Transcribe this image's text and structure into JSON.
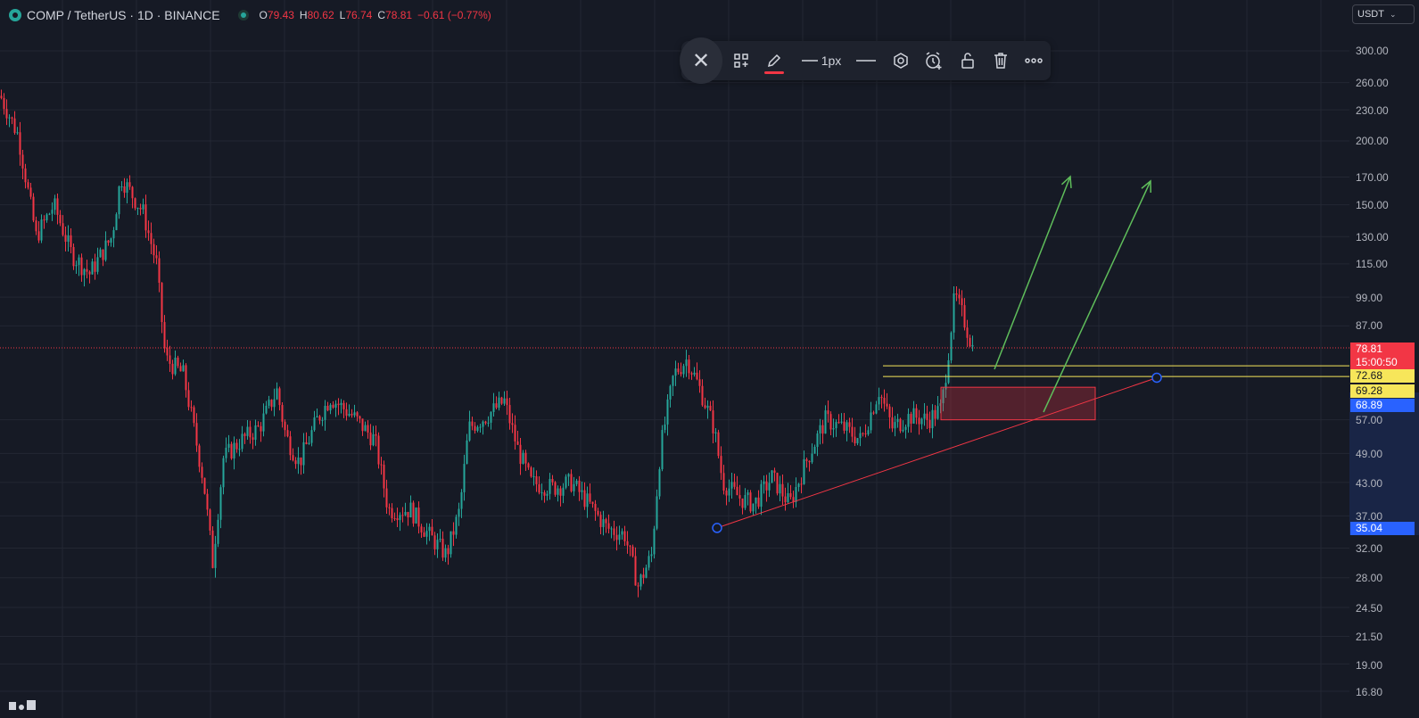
{
  "header": {
    "symbol": "COMP / TetherUS · 1D · BINANCE",
    "ohlc": {
      "o_label": "O",
      "o_value": "79.43",
      "h_label": "H",
      "h_value": "80.62",
      "l_label": "L",
      "l_value": "76.74",
      "c_label": "C",
      "c_value": "78.81",
      "change": "−0.61 (−0.77%)"
    }
  },
  "toolbar": {
    "close_icon": "close-icon",
    "items": [
      "templates-icon",
      "pencil-icon",
      "line-width",
      "line-style-icon",
      "settings-icon",
      "alert-icon",
      "lock-icon",
      "trash-icon",
      "more-icon"
    ],
    "width_label": "1px",
    "accent_color": "#f23645"
  },
  "axis": {
    "currency": "USDT",
    "ticks": [
      "300.00",
      "260.00",
      "230.00",
      "200.00",
      "170.00",
      "150.00",
      "130.00",
      "115.00",
      "99.00",
      "87.00",
      "57.00",
      "49.00",
      "43.00",
      "37.00",
      "32.00",
      "28.00",
      "24.50",
      "21.50",
      "19.00",
      "16.80"
    ],
    "current_price": "78.81",
    "countdown": "15:00:50",
    "yellow_level_1": "72.68",
    "yellow_level_2": "69.28",
    "blue_level_1": "68.89",
    "blue_level_2": "35.04"
  },
  "colors": {
    "up": "#26a69a",
    "down": "#f23645",
    "trendline": "#f23645",
    "arrows": "#5fbd5b",
    "hlines": "#f7e65a",
    "background": "#161a25"
  },
  "chart_data": {
    "type": "candlestick",
    "symbol": "COMP/USDT",
    "timeframe": "1D",
    "y_scale": "log",
    "ylim": [
      16.8,
      300
    ],
    "close_path": [
      {
        "x": 0,
        "y": 245
      },
      {
        "x": 20,
        "y": 205
      },
      {
        "x": 40,
        "y": 130
      },
      {
        "x": 60,
        "y": 150
      },
      {
        "x": 80,
        "y": 120
      },
      {
        "x": 100,
        "y": 110
      },
      {
        "x": 125,
        "y": 130
      },
      {
        "x": 135,
        "y": 170
      },
      {
        "x": 160,
        "y": 145
      },
      {
        "x": 175,
        "y": 115
      },
      {
        "x": 185,
        "y": 75
      },
      {
        "x": 205,
        "y": 70
      },
      {
        "x": 215,
        "y": 57
      },
      {
        "x": 228,
        "y": 43
      },
      {
        "x": 238,
        "y": 30
      },
      {
        "x": 250,
        "y": 48
      },
      {
        "x": 270,
        "y": 52
      },
      {
        "x": 290,
        "y": 55
      },
      {
        "x": 310,
        "y": 65
      },
      {
        "x": 320,
        "y": 53
      },
      {
        "x": 335,
        "y": 47
      },
      {
        "x": 355,
        "y": 57
      },
      {
        "x": 370,
        "y": 63
      },
      {
        "x": 395,
        "y": 58
      },
      {
        "x": 420,
        "y": 52
      },
      {
        "x": 435,
        "y": 38
      },
      {
        "x": 460,
        "y": 38
      },
      {
        "x": 480,
        "y": 34
      },
      {
        "x": 500,
        "y": 31
      },
      {
        "x": 515,
        "y": 38
      },
      {
        "x": 525,
        "y": 55
      },
      {
        "x": 545,
        "y": 58
      },
      {
        "x": 565,
        "y": 62
      },
      {
        "x": 580,
        "y": 50
      },
      {
        "x": 595,
        "y": 43
      },
      {
        "x": 620,
        "y": 42
      },
      {
        "x": 640,
        "y": 43
      },
      {
        "x": 660,
        "y": 39
      },
      {
        "x": 680,
        "y": 35
      },
      {
        "x": 700,
        "y": 34
      },
      {
        "x": 715,
        "y": 27
      },
      {
        "x": 730,
        "y": 31
      },
      {
        "x": 740,
        "y": 50
      },
      {
        "x": 755,
        "y": 70
      },
      {
        "x": 770,
        "y": 75
      },
      {
        "x": 785,
        "y": 65
      },
      {
        "x": 800,
        "y": 55
      },
      {
        "x": 810,
        "y": 43
      },
      {
        "x": 830,
        "y": 40
      },
      {
        "x": 845,
        "y": 39
      },
      {
        "x": 865,
        "y": 44
      },
      {
        "x": 885,
        "y": 39
      },
      {
        "x": 905,
        "y": 48
      },
      {
        "x": 925,
        "y": 57
      },
      {
        "x": 945,
        "y": 55
      },
      {
        "x": 965,
        "y": 52
      },
      {
        "x": 985,
        "y": 65
      },
      {
        "x": 1000,
        "y": 55
      },
      {
        "x": 1020,
        "y": 58
      },
      {
        "x": 1040,
        "y": 57
      },
      {
        "x": 1055,
        "y": 60
      },
      {
        "x": 1062,
        "y": 75
      },
      {
        "x": 1070,
        "y": 100
      },
      {
        "x": 1080,
        "y": 90
      },
      {
        "x": 1090,
        "y": 79
      }
    ],
    "drawings": {
      "horizontal_lines": [
        72.68,
        69.28
      ],
      "trendline": {
        "from_price": 35.04,
        "to_price": 68.89
      },
      "zone_price_range": [
        57,
        66
      ],
      "arrows": 2
    }
  }
}
